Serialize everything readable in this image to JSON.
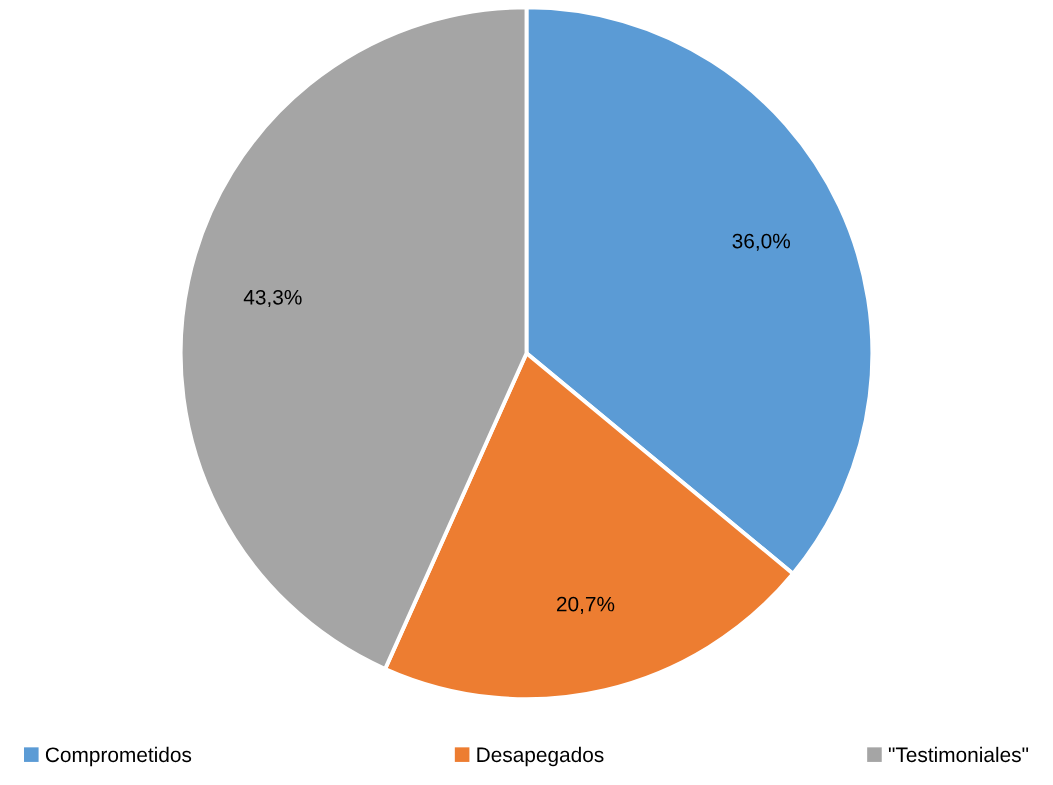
{
  "chart_data": {
    "type": "pie",
    "categories": [
      "Comprometidos",
      "Desapegados",
      "\"Testimoniales\""
    ],
    "values": [
      36.0,
      20.7,
      43.3
    ],
    "colors": [
      "#5b9bd5",
      "#ed7d31",
      "#a5a5a5"
    ],
    "value_labels": [
      "36,0%",
      "20,7%",
      "43,3%"
    ],
    "legend": "bottom"
  }
}
